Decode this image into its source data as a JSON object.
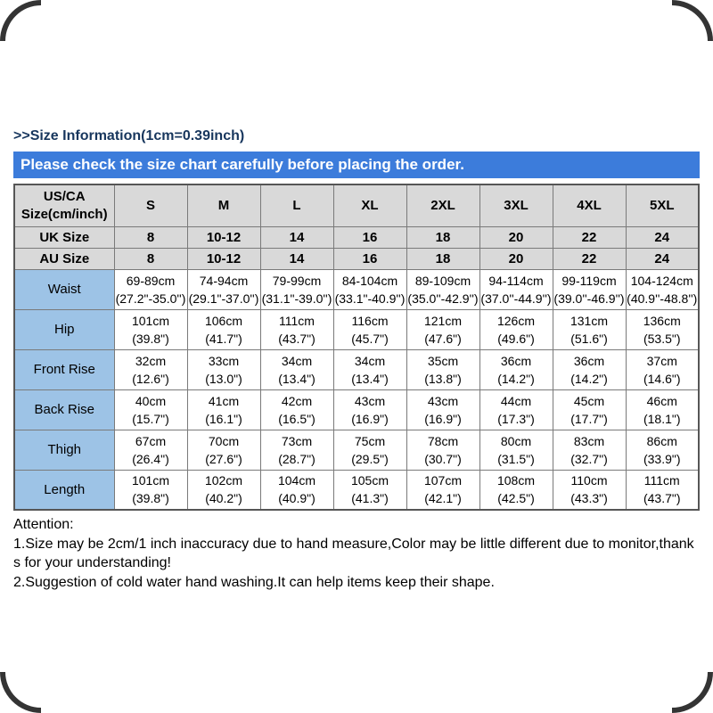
{
  "page": {
    "size_info_heading": ">>Size Information(1cm=0.39inch)",
    "banner_text": "Please check the size chart carefully before placing the order."
  },
  "table": {
    "corner_header_lines": [
      "US/CA",
      "Size(cm/inch)"
    ],
    "size_headers": [
      "S",
      "M",
      "L",
      "XL",
      "2XL",
      "3XL",
      "4XL",
      "5XL"
    ],
    "size_rows": [
      {
        "label": "UK Size",
        "values": [
          "8",
          "10-12",
          "14",
          "16",
          "18",
          "20",
          "22",
          "24"
        ]
      },
      {
        "label": "AU Size",
        "values": [
          "8",
          "10-12",
          "14",
          "16",
          "18",
          "20",
          "22",
          "24"
        ]
      }
    ],
    "measure_rows": [
      {
        "label": "Waist",
        "values": [
          [
            "69-89cm",
            "(27.2\"-35.0'')"
          ],
          [
            "74-94cm",
            "(29.1\"-37.0'')"
          ],
          [
            "79-99cm",
            "(31.1\"-39.0'')"
          ],
          [
            "84-104cm",
            "(33.1\"-40.9'')"
          ],
          [
            "89-109cm",
            "(35.0''-42.9'')"
          ],
          [
            "94-114cm",
            "(37.0''-44.9'')"
          ],
          [
            "99-119cm",
            "(39.0''-46.9'')"
          ],
          [
            "104-124cm",
            "(40.9''-48.8'')"
          ]
        ]
      },
      {
        "label": "Hip",
        "values": [
          [
            "101cm",
            "(39.8\")"
          ],
          [
            "106cm",
            "(41.7\")"
          ],
          [
            "111cm",
            "(43.7\")"
          ],
          [
            "116cm",
            "(45.7\")"
          ],
          [
            "121cm",
            "(47.6\")"
          ],
          [
            "126cm",
            "(49.6\")"
          ],
          [
            "131cm",
            "(51.6\")"
          ],
          [
            "136cm",
            "(53.5\")"
          ]
        ]
      },
      {
        "label": "Front Rise",
        "values": [
          [
            "32cm",
            "(12.6\")"
          ],
          [
            "33cm",
            "(13.0\")"
          ],
          [
            "34cm",
            "(13.4\")"
          ],
          [
            "34cm",
            "(13.4\")"
          ],
          [
            "35cm",
            "(13.8\")"
          ],
          [
            "36cm",
            "(14.2\")"
          ],
          [
            "36cm",
            "(14.2\")"
          ],
          [
            "37cm",
            "(14.6\")"
          ]
        ]
      },
      {
        "label": "Back Rise",
        "values": [
          [
            "40cm",
            "(15.7\")"
          ],
          [
            "41cm",
            "(16.1\")"
          ],
          [
            "42cm",
            "(16.5\")"
          ],
          [
            "43cm",
            "(16.9\")"
          ],
          [
            "43cm",
            "(16.9\")"
          ],
          [
            "44cm",
            "(17.3\")"
          ],
          [
            "45cm",
            "(17.7\")"
          ],
          [
            "46cm",
            "(18.1\")"
          ]
        ]
      },
      {
        "label": "Thigh",
        "values": [
          [
            "67cm",
            "(26.4\")"
          ],
          [
            "70cm",
            "(27.6\")"
          ],
          [
            "73cm",
            "(28.7\")"
          ],
          [
            "75cm",
            "(29.5\")"
          ],
          [
            "78cm",
            "(30.7\")"
          ],
          [
            "80cm",
            "(31.5\")"
          ],
          [
            "83cm",
            "(32.7\")"
          ],
          [
            "86cm",
            "(33.9\")"
          ]
        ]
      },
      {
        "label": "Length",
        "values": [
          [
            "101cm",
            "(39.8\")"
          ],
          [
            "102cm",
            "(40.2\")"
          ],
          [
            "104cm",
            "(40.9\")"
          ],
          [
            "105cm",
            "(41.3\")"
          ],
          [
            "107cm",
            "(42.1\")"
          ],
          [
            "108cm",
            "(42.5\")"
          ],
          [
            "110cm",
            "(43.3\")"
          ],
          [
            "111cm",
            "(43.7\")"
          ]
        ]
      }
    ]
  },
  "attention": {
    "title": "Attention:",
    "lines": [
      "1.Size may be 2cm/1 inch inaccuracy due to hand measure,Color may be little different due to monitor,thanks for your understanding!",
      "2.Suggestion of cold water hand washing.It can help items keep their shape."
    ]
  },
  "colors": {
    "heading_navy": "#17365D",
    "banner_blue": "#3C7CDB",
    "header_gray": "#D9D9D9",
    "label_light_blue": "#9DC3E6"
  }
}
